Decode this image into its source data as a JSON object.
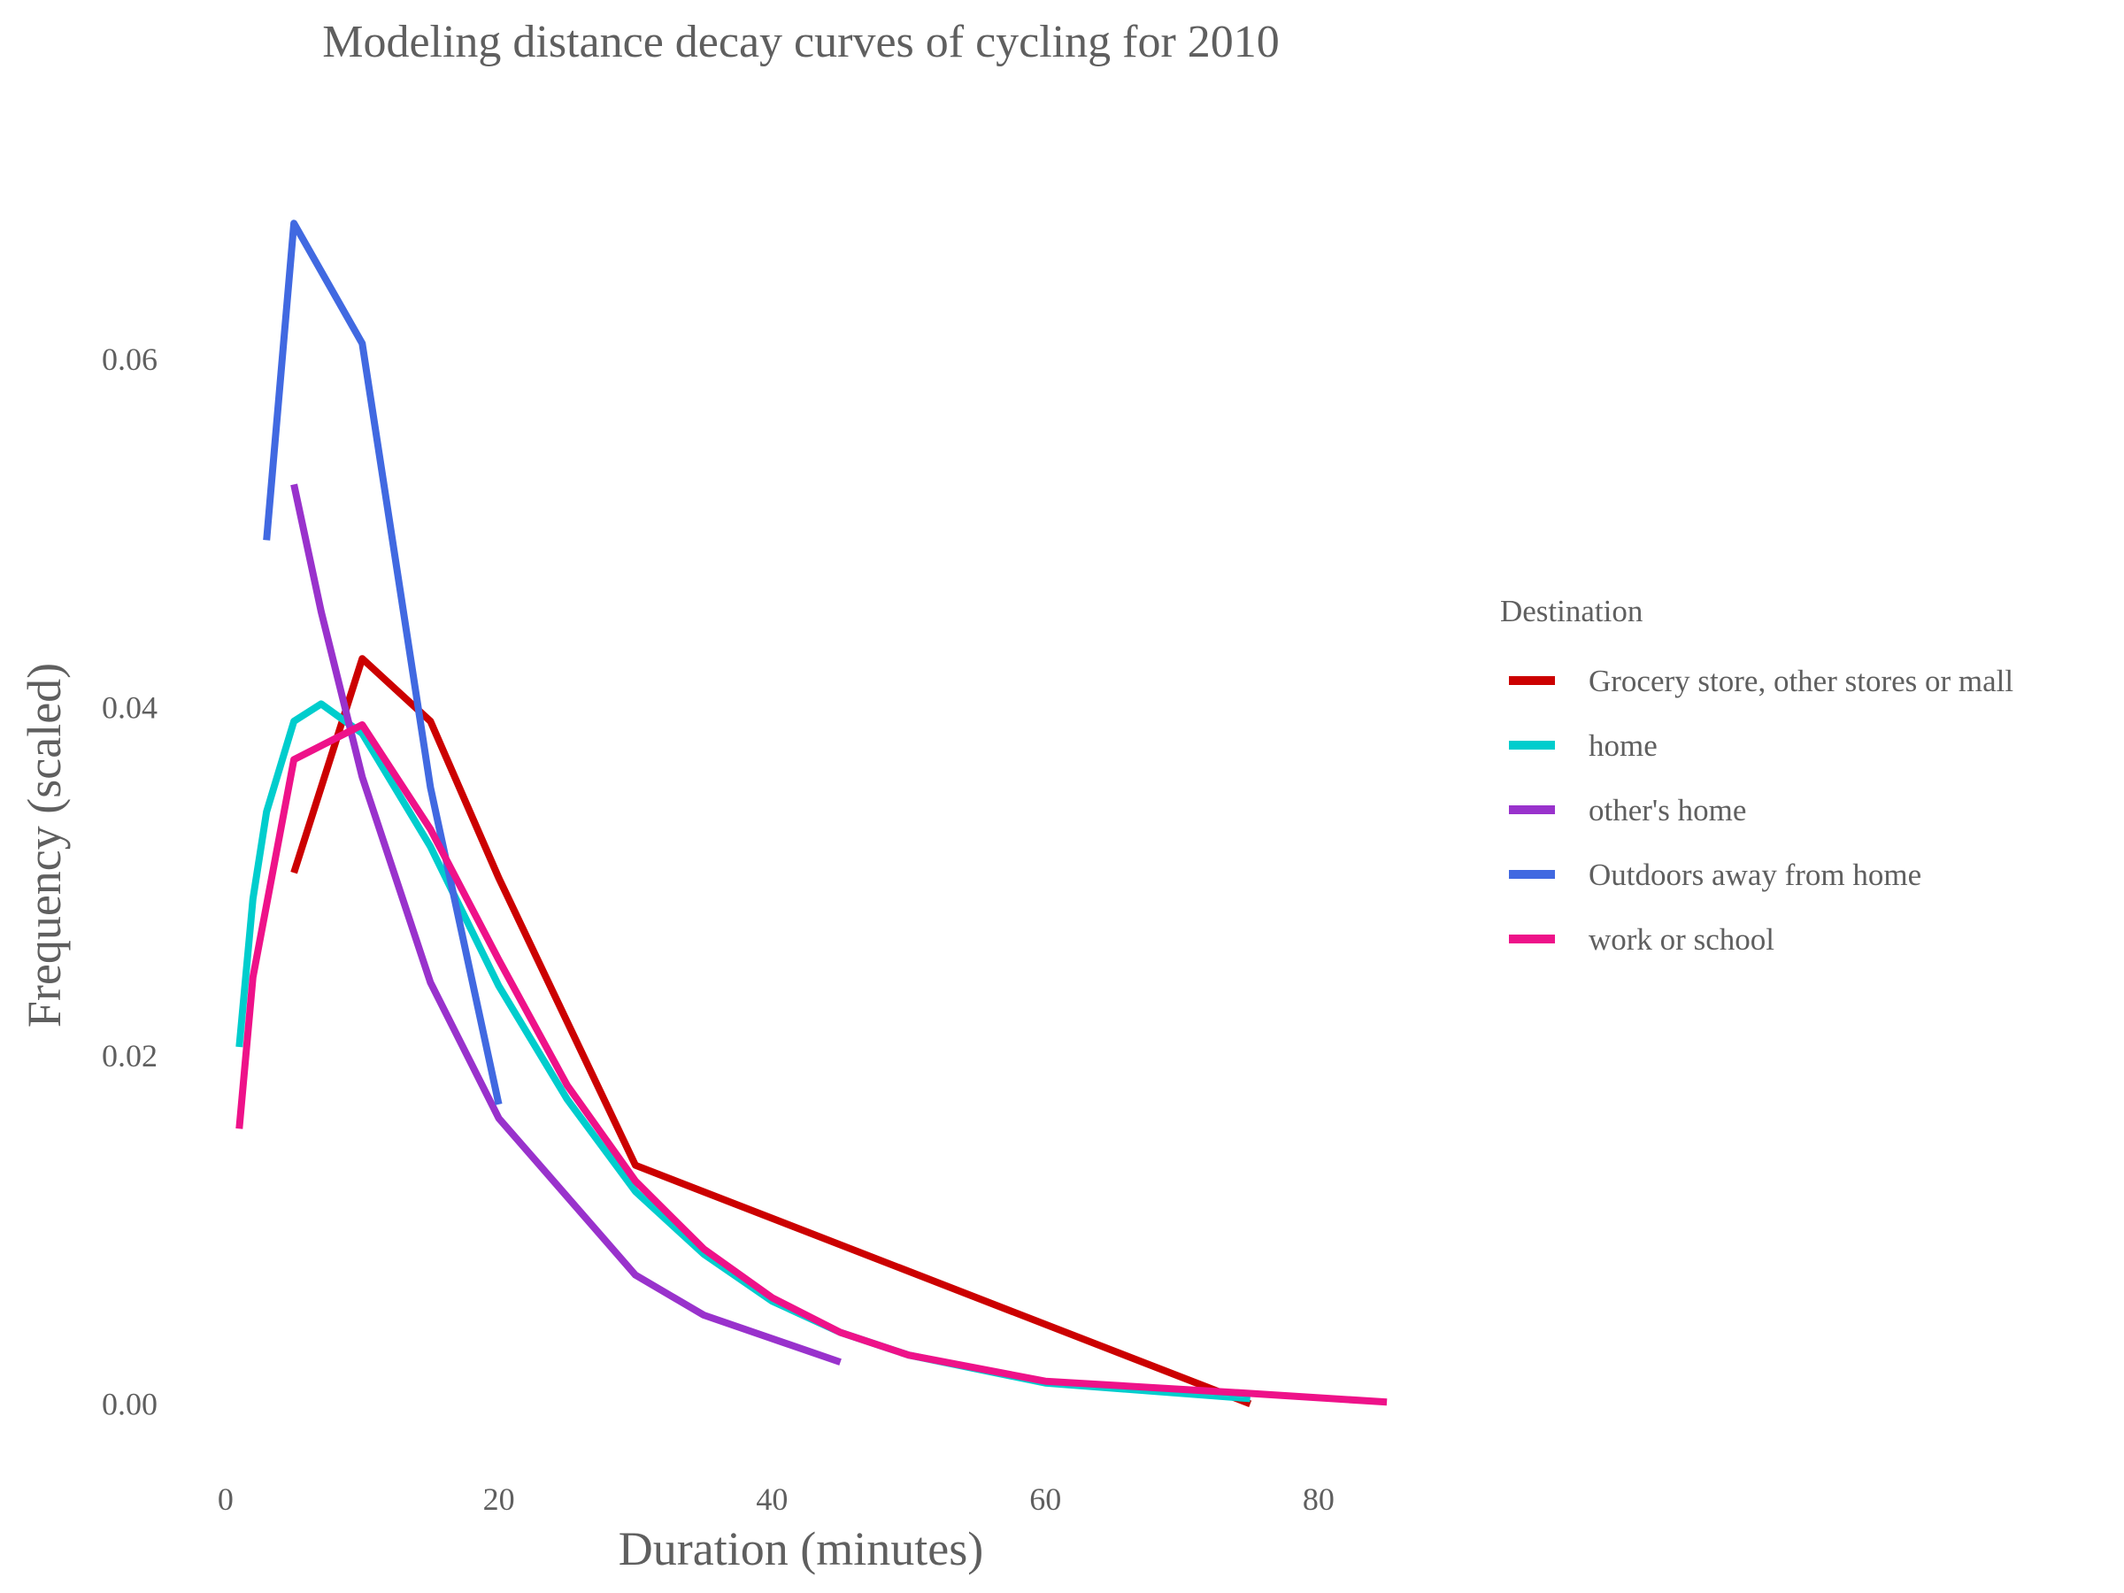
{
  "chart_data": {
    "type": "line",
    "title": "Modeling distance decay curves of cycling for 2010",
    "xlabel": "Duration (minutes)",
    "ylabel": "Frequency (scaled)",
    "xlim": [
      -2,
      87
    ],
    "ylim": [
      -0.004,
      0.073
    ],
    "xticks": [
      0,
      20,
      40,
      60,
      80
    ],
    "xtick_labels": [
      "0",
      "20",
      "40",
      "60",
      "80"
    ],
    "yticks": [
      0,
      0.02,
      0.04,
      0.06
    ],
    "ytick_labels": [
      "0.00",
      "0.02",
      "0.04",
      "0.06"
    ],
    "grid": false,
    "legend": {
      "title": "Destination",
      "placement": "right"
    },
    "series": [
      {
        "name": "Grocery store, other stores or mall",
        "color": "#cc0000",
        "x": [
          5,
          10,
          15,
          20,
          30,
          75
        ],
        "y": [
          0.0305,
          0.0428,
          0.0392,
          0.0302,
          0.0137,
          0.0
        ]
      },
      {
        "name": "home",
        "color": "#00cdcd",
        "x": [
          1,
          2,
          3,
          5,
          7,
          10,
          15,
          20,
          25,
          30,
          35,
          40,
          45,
          50,
          60,
          75
        ],
        "y": [
          0.0205,
          0.029,
          0.034,
          0.0392,
          0.0402,
          0.0385,
          0.032,
          0.024,
          0.0175,
          0.0122,
          0.0086,
          0.0059,
          0.0041,
          0.0028,
          0.0012,
          0.0003
        ]
      },
      {
        "name": "other's home",
        "color": "#9932cc",
        "x": [
          5,
          7,
          10,
          15,
          20,
          30,
          35,
          45
        ],
        "y": [
          0.0528,
          0.0455,
          0.036,
          0.0242,
          0.0164,
          0.0074,
          0.0051,
          0.0024
        ]
      },
      {
        "name": "Outdoors away from home",
        "color": "#4169e1",
        "x": [
          3,
          5,
          10,
          15,
          20
        ],
        "y": [
          0.0496,
          0.0678,
          0.0609,
          0.0354,
          0.0172
        ]
      },
      {
        "name": "work or school",
        "color": "#ee1289",
        "x": [
          1,
          2,
          5,
          10,
          15,
          20,
          25,
          30,
          35,
          40,
          45,
          50,
          60,
          75,
          85
        ],
        "y": [
          0.0158,
          0.0245,
          0.037,
          0.039,
          0.033,
          0.0255,
          0.0183,
          0.0128,
          0.0089,
          0.0061,
          0.0041,
          0.0028,
          0.0013,
          0.0006,
          0.0001
        ]
      }
    ]
  }
}
